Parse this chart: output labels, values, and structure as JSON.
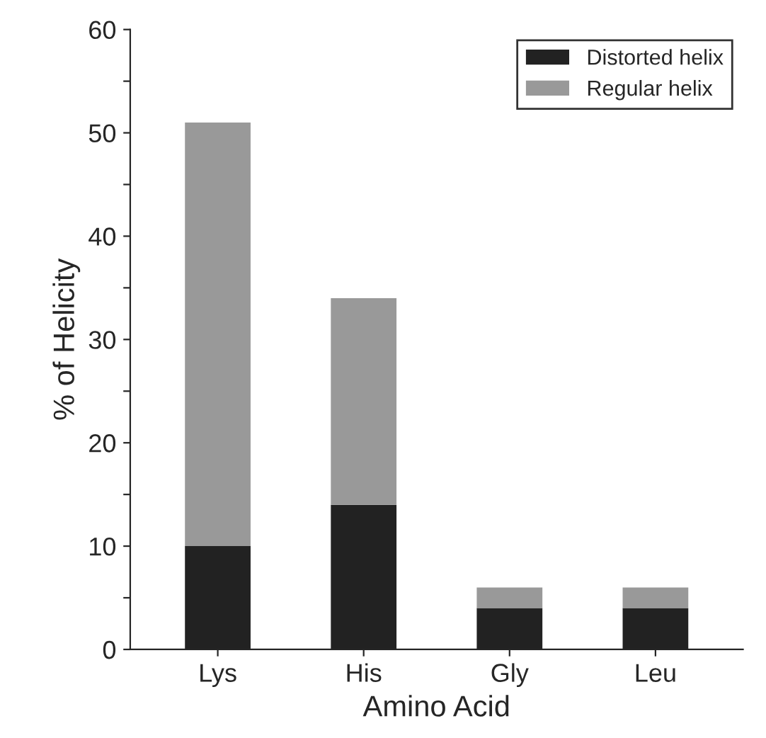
{
  "chart_data": {
    "type": "bar",
    "stacked": true,
    "xlabel": "Amino Acid",
    "ylabel": "% of Helicity",
    "categories": [
      "Lys",
      "His",
      "Gly",
      "Leu"
    ],
    "series": [
      {
        "name": "Distorted helix",
        "color": "#222222",
        "values": [
          10,
          14,
          4,
          4
        ]
      },
      {
        "name": "Regular helix",
        "color": "#999999",
        "values": [
          41,
          20,
          2,
          2
        ]
      }
    ],
    "ylim": [
      0,
      60
    ],
    "yticks": [
      0,
      {
        "value": 5,
        "label": null
      },
      10,
      {
        "value": 15,
        "label": null
      },
      20,
      {
        "value": 25,
        "label": null
      },
      30,
      {
        "value": 35,
        "label": null
      },
      40,
      {
        "value": 45,
        "label": null
      },
      50,
      {
        "value": 55,
        "label": null
      },
      60
    ],
    "legend": "top right",
    "grid": false
  }
}
